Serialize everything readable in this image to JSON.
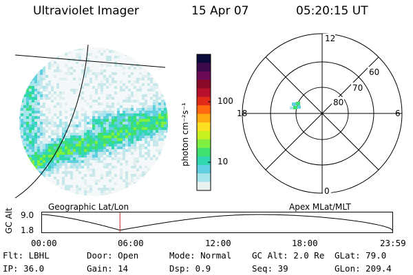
{
  "header": {
    "title": "Ultraviolet Imager",
    "date": "15 Apr 07",
    "time": "05:20:15 UT"
  },
  "colorbar": {
    "unit_label": "photon cm⁻²s⁻¹",
    "ticks": [
      "100",
      "10"
    ],
    "colors": [
      "#0a0a3a",
      "#3a0a4a",
      "#6a0a55",
      "#8a0a2a",
      "#b8102a",
      "#e02a1a",
      "#ff6a10",
      "#ffaa10",
      "#ffe020",
      "#c8f020",
      "#80f040",
      "#40e070",
      "#30d8b0",
      "#60d0e0",
      "#a8e4ec",
      "#e8f0f0"
    ]
  },
  "polar_plot": {
    "mlt_labels": {
      "top": "12",
      "bottom": "0",
      "left": "18",
      "right": "6"
    },
    "lat_labels": [
      "60",
      "70",
      "80"
    ]
  },
  "timeline": {
    "left_label": "Geographic Lat/Lon",
    "right_label": "Apex MLat/MLT",
    "y_axis_title": "GC Alt",
    "y_ticks": [
      "9.0",
      "1.8"
    ],
    "x_ticks": [
      "00:00",
      "06:00",
      "12:00",
      "18:00",
      "23:59"
    ],
    "marker_time_hours": 5.34
  },
  "info": {
    "row1": [
      "Flt: LBHL",
      "Door: Open",
      "Mode: Normal",
      "GC Alt: 2.0 Re",
      "GLat:  79.0"
    ],
    "row2": [
      "IP: 36.0",
      "Gain: 14",
      "Dsp:    0.9",
      "Seq: 39",
      "GLon: 209.4"
    ]
  },
  "colors": {
    "marker": "#cc2222",
    "text": "#000000"
  }
}
